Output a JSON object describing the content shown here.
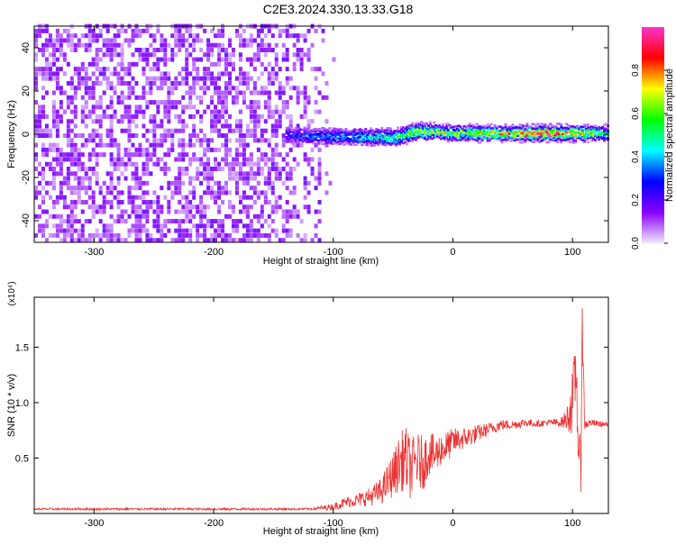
{
  "title": "C2E3.2024.330.13.33.G18",
  "chart_data": [
    {
      "type": "heatmap",
      "xlabel": "Height of straight line (km)",
      "ylabel": "Frequency (Hz)",
      "xlim": [
        -350,
        130
      ],
      "ylim": [
        -50,
        50
      ],
      "x_ticks": [
        -300,
        -200,
        -100,
        0,
        100
      ],
      "y_ticks": [
        -40,
        -20,
        0,
        20,
        40
      ],
      "colorbar": {
        "label": "Normalized spectral amplitude",
        "range": [
          0,
          1
        ],
        "ticks": [
          0.0,
          0.2,
          0.4,
          0.6,
          0.8
        ],
        "tick_labels": [
          "0.0",
          "0.2",
          "0.4",
          "0.6",
          "0.8"
        ],
        "colors": [
          "#f2e8ff",
          "#8800ff",
          "#0000ff",
          "#00ffff",
          "#00ff00",
          "#ffff00",
          "#ff0000",
          "#ff33cc"
        ]
      },
      "regions": [
        {
          "x_range": [
            -350,
            -100
          ],
          "freq_range": [
            -50,
            50
          ],
          "amplitude": 0.1
        },
        {
          "x_range": [
            -140,
            130
          ],
          "center_freq": [
            [
              -140,
              0
            ],
            [
              -50,
              -1
            ],
            [
              -30,
              2
            ],
            [
              0,
              1
            ],
            [
              130,
              1
            ]
          ],
          "amplitude": [
            [
              -140,
              0.25
            ],
            [
              -60,
              0.45
            ],
            [
              -30,
              0.6
            ],
            [
              0,
              0.6
            ],
            [
              50,
              0.7
            ],
            [
              80,
              0.9
            ],
            [
              130,
              0.5
            ]
          ]
        }
      ]
    },
    {
      "type": "line",
      "xlabel": "Height of straight line (km)",
      "ylabel": "SNR (10 * v/v)",
      "y_scale_label": "(x10⁴)",
      "xlim": [
        -350,
        130
      ],
      "ylim": [
        0,
        1.95
      ],
      "x_ticks": [
        -300,
        -200,
        -100,
        0,
        100
      ],
      "y_ticks": [
        0.5,
        1.0,
        1.5
      ],
      "y_tick_labels": [
        "0.5",
        "1.0",
        "1.5"
      ],
      "series": [
        {
          "color": "#ee3333",
          "x": [
            -350,
            -300,
            -250,
            -200,
            -150,
            -120,
            -110,
            -100,
            -90,
            -80,
            -70,
            -60,
            -50,
            -45,
            -40,
            -35,
            -30,
            -25,
            -20,
            -15,
            -10,
            -5,
            0,
            10,
            20,
            30,
            40,
            50,
            60,
            70,
            80,
            90,
            95,
            100,
            103,
            105,
            107,
            108,
            110,
            115,
            120,
            130
          ],
          "y": [
            0.04,
            0.04,
            0.04,
            0.04,
            0.04,
            0.04,
            0.05,
            0.06,
            0.1,
            0.12,
            0.15,
            0.2,
            0.35,
            0.45,
            0.5,
            0.4,
            0.48,
            0.45,
            0.55,
            0.52,
            0.58,
            0.6,
            0.65,
            0.68,
            0.72,
            0.76,
            0.8,
            0.8,
            0.82,
            0.81,
            0.82,
            0.82,
            0.85,
            1.0,
            1.3,
            0.6,
            0.3,
            1.9,
            0.8,
            0.82,
            0.81,
            0.8
          ],
          "noise_amplitude": [
            0.01,
            0.01,
            0.01,
            0.01,
            0.01,
            0.01,
            0.02,
            0.03,
            0.05,
            0.06,
            0.08,
            0.12,
            0.2,
            0.25,
            0.3,
            0.28,
            0.25,
            0.25,
            0.2,
            0.18,
            0.15,
            0.15,
            0.12,
            0.1,
            0.08,
            0.06,
            0.05,
            0.04,
            0.04,
            0.03,
            0.03,
            0.04,
            0.1,
            0.3,
            0.3,
            0.3,
            0.25,
            0.4,
            0.05,
            0.03,
            0.03,
            0.02
          ]
        }
      ]
    }
  ]
}
